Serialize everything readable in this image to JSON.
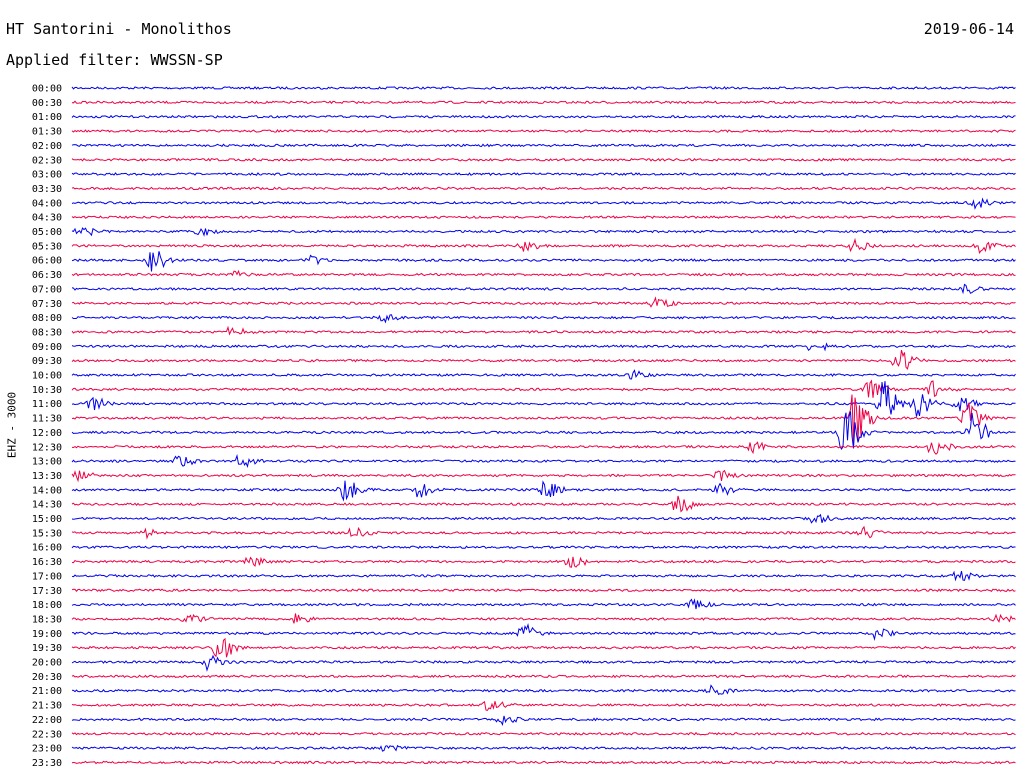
{
  "header": {
    "station": "HT Santorini - Monolithos",
    "date": "2019-06-14",
    "filter": "Applied filter: WWSSN-SP"
  },
  "channel_label": "EHZ - 3000",
  "colors": {
    "odd": "#0000ee",
    "even": "#ee0044"
  },
  "chart_data": {
    "type": "line",
    "title": "HT Santorini - Monolithos",
    "subtitle": "Applied filter: WWSSN-SP",
    "date": "2019-06-14",
    "ylabel": "EHZ - 3000",
    "xlabel": "",
    "rows": [
      "00:00",
      "00:30",
      "01:00",
      "01:30",
      "02:00",
      "02:30",
      "03:00",
      "03:30",
      "04:00",
      "04:30",
      "05:00",
      "05:30",
      "06:00",
      "06:30",
      "07:00",
      "07:30",
      "08:00",
      "08:30",
      "09:00",
      "09:30",
      "10:00",
      "10:30",
      "11:00",
      "11:30",
      "12:00",
      "12:30",
      "13:00",
      "13:30",
      "14:00",
      "14:30",
      "15:00",
      "15:30",
      "16:00",
      "16:30",
      "17:00",
      "17:30",
      "18:00",
      "18:30",
      "19:00",
      "19:30",
      "20:00",
      "20:30",
      "21:00",
      "21:30",
      "22:00",
      "22:30",
      "23:00",
      "23:30"
    ],
    "row_colors": "alternating blue / red",
    "row_duration_minutes": 30,
    "events": [
      {
        "row": 8,
        "t": 28.6,
        "amp": 1.0
      },
      {
        "row": 10,
        "t": 0.2,
        "amp": 0.9
      },
      {
        "row": 10,
        "t": 4.0,
        "amp": 0.7
      },
      {
        "row": 11,
        "t": 14.3,
        "amp": 0.8
      },
      {
        "row": 11,
        "t": 24.8,
        "amp": 0.9
      },
      {
        "row": 11,
        "t": 28.8,
        "amp": 1.0
      },
      {
        "row": 12,
        "t": 2.5,
        "amp": 1.8
      },
      {
        "row": 12,
        "t": 7.5,
        "amp": 0.8
      },
      {
        "row": 13,
        "t": 5.0,
        "amp": 0.6
      },
      {
        "row": 14,
        "t": 28.3,
        "amp": 0.8
      },
      {
        "row": 15,
        "t": 18.5,
        "amp": 0.9
      },
      {
        "row": 16,
        "t": 9.8,
        "amp": 0.7
      },
      {
        "row": 17,
        "t": 5.0,
        "amp": 0.8
      },
      {
        "row": 18,
        "t": 23.5,
        "amp": 1.0
      },
      {
        "row": 19,
        "t": 26.2,
        "amp": 2.0
      },
      {
        "row": 20,
        "t": 17.8,
        "amp": 0.7
      },
      {
        "row": 21,
        "t": 25.3,
        "amp": 1.5
      },
      {
        "row": 21,
        "t": 27.3,
        "amp": 1.3
      },
      {
        "row": 22,
        "t": 0.6,
        "amp": 1.0
      },
      {
        "row": 22,
        "t": 25.7,
        "amp": 4.0
      },
      {
        "row": 22,
        "t": 26.8,
        "amp": 2.0
      },
      {
        "row": 22,
        "t": 28.1,
        "amp": 1.5
      },
      {
        "row": 23,
        "t": 24.8,
        "amp": 4.5
      },
      {
        "row": 23,
        "t": 28.4,
        "amp": 2.5
      },
      {
        "row": 24,
        "t": 24.5,
        "amp": 5.0
      },
      {
        "row": 24,
        "t": 28.5,
        "amp": 3.5
      },
      {
        "row": 25,
        "t": 21.5,
        "amp": 1.0
      },
      {
        "row": 25,
        "t": 27.3,
        "amp": 1.5
      },
      {
        "row": 26,
        "t": 3.3,
        "amp": 1.0
      },
      {
        "row": 26,
        "t": 5.3,
        "amp": 1.0
      },
      {
        "row": 27,
        "t": 0.1,
        "amp": 0.9
      },
      {
        "row": 27,
        "t": 20.5,
        "amp": 0.8
      },
      {
        "row": 28,
        "t": 8.6,
        "amp": 1.8
      },
      {
        "row": 28,
        "t": 11.0,
        "amp": 1.2
      },
      {
        "row": 28,
        "t": 15.0,
        "amp": 1.3
      },
      {
        "row": 28,
        "t": 20.5,
        "amp": 1.0
      },
      {
        "row": 29,
        "t": 19.2,
        "amp": 1.6
      },
      {
        "row": 30,
        "t": 23.5,
        "amp": 0.9
      },
      {
        "row": 31,
        "t": 2.3,
        "amp": 0.8
      },
      {
        "row": 31,
        "t": 8.9,
        "amp": 0.9
      },
      {
        "row": 31,
        "t": 25.1,
        "amp": 0.9
      },
      {
        "row": 33,
        "t": 5.6,
        "amp": 0.8
      },
      {
        "row": 33,
        "t": 15.8,
        "amp": 1.1
      },
      {
        "row": 34,
        "t": 28.1,
        "amp": 0.8
      },
      {
        "row": 36,
        "t": 19.7,
        "amp": 0.7
      },
      {
        "row": 37,
        "t": 3.6,
        "amp": 0.8
      },
      {
        "row": 37,
        "t": 7.0,
        "amp": 0.8
      },
      {
        "row": 37,
        "t": 29.3,
        "amp": 0.8
      },
      {
        "row": 38,
        "t": 14.3,
        "amp": 1.5
      },
      {
        "row": 38,
        "t": 25.5,
        "amp": 0.8
      },
      {
        "row": 39,
        "t": 4.6,
        "amp": 2.4
      },
      {
        "row": 40,
        "t": 4.3,
        "amp": 1.2
      },
      {
        "row": 42,
        "t": 20.3,
        "amp": 0.8
      },
      {
        "row": 43,
        "t": 13.2,
        "amp": 0.9
      },
      {
        "row": 44,
        "t": 13.6,
        "amp": 0.7
      },
      {
        "row": 46,
        "t": 9.9,
        "amp": 0.6
      }
    ]
  }
}
